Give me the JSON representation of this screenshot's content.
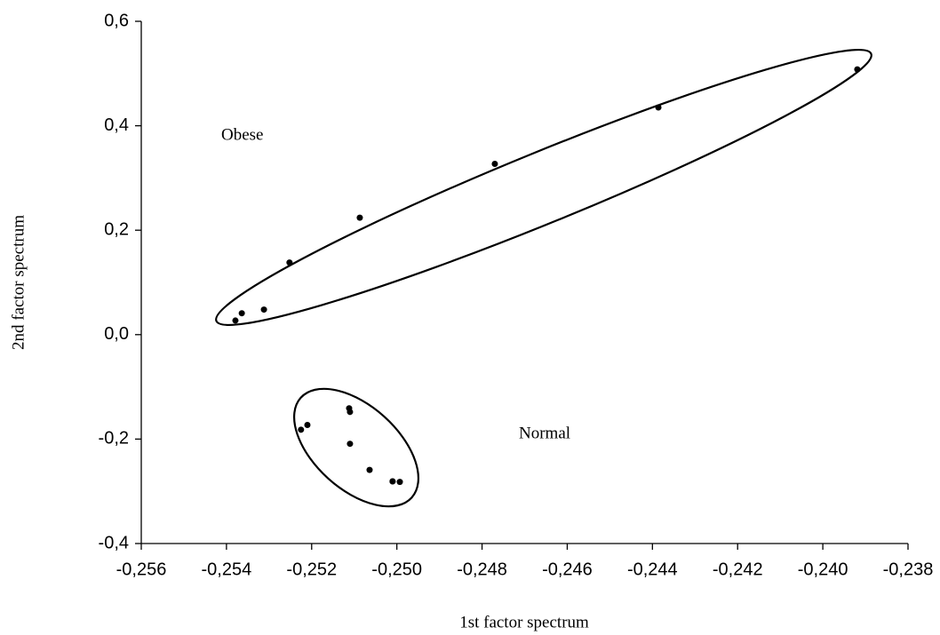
{
  "chart_data": {
    "type": "scatter",
    "x_label": "1st factor spectrum",
    "y_label": "2nd factor spectrum",
    "annotations": [
      "Obese",
      "Normal"
    ],
    "series": [
      {
        "color": "#000000",
        "x": [
          -0.25379,
          -0.25364,
          -0.25312,
          -0.25252,
          -0.25087,
          -0.2477,
          -0.24386,
          -0.23919,
          -0.25225,
          -0.2521,
          -0.25112,
          -0.2511,
          -0.2511,
          -0.25064,
          -0.2501,
          -0.2501,
          -0.24993
        ],
        "values": [
          0.027,
          0.041,
          0.048,
          0.138,
          0.224,
          0.327,
          0.435,
          0.508,
          -0.182,
          -0.173,
          -0.141,
          -0.148,
          -0.209,
          -0.259,
          -0.281,
          -0.281,
          -0.282
        ]
      }
    ],
    "xlim": [
      -0.256,
      -0.238
    ],
    "xticks": [
      {
        "value": -0.256,
        "label": "-0,256"
      },
      {
        "value": -0.254,
        "label": "-0,254"
      },
      {
        "value": -0.252,
        "label": "-0,252"
      },
      {
        "value": -0.25,
        "label": "-0,250"
      },
      {
        "value": -0.248,
        "label": "-0,248"
      },
      {
        "value": -0.246,
        "label": "-0,246"
      },
      {
        "value": -0.244,
        "label": "-0,244"
      },
      {
        "value": -0.242,
        "label": "-0,242"
      },
      {
        "value": -0.24,
        "label": "-0,240"
      },
      {
        "value": -0.238,
        "label": "-0,238"
      }
    ],
    "ylim": [
      -0.4,
      0.6
    ],
    "yticks": [
      {
        "value": -0.4,
        "label": "-0,4"
      },
      {
        "value": -0.2,
        "label": "-0,2"
      },
      {
        "value": 0,
        "label": "0,0"
      },
      {
        "value": 0.2,
        "label": "0,2"
      },
      {
        "value": 0.4,
        "label": "0,4"
      },
      {
        "value": 0.6,
        "label": "0,6"
      }
    ]
  }
}
